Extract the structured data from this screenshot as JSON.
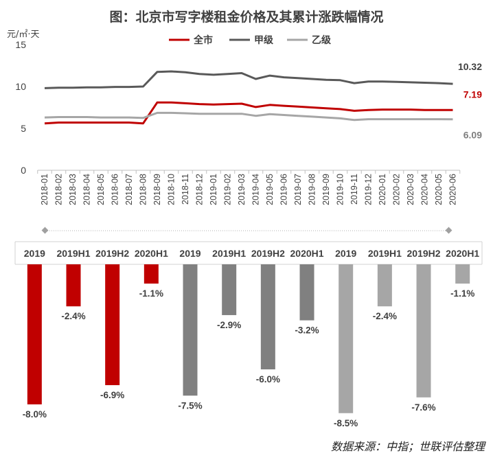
{
  "title": "图：北京市写字楼租金价格及其累计涨跌幅情况",
  "source": "数据来源：中指；世联评估整理",
  "chart_data": [
    {
      "type": "line",
      "ylabel": "元/㎡·天",
      "ylim": [
        0,
        15
      ],
      "yticks": [
        "0",
        "5",
        "10",
        "15"
      ],
      "legend_position": "top-center",
      "x": [
        "2018-01",
        "2018-02",
        "2018-03",
        "2018-04",
        "2018-05",
        "2018-06",
        "2018-07",
        "2018-08",
        "2018-09",
        "2018-10",
        "2018-11",
        "2018-12",
        "2019-01",
        "2019-02",
        "2019-03",
        "2019-04",
        "2019-05",
        "2019-06",
        "2019-07",
        "2019-08",
        "2019-09",
        "2019-10",
        "2019-11",
        "2019-12",
        "2020-01",
        "2020-02",
        "2020-03",
        "2020-04",
        "2020-05",
        "2020-06"
      ],
      "series": [
        {
          "name": "全市",
          "color": "#c00000",
          "end_label": "7.19",
          "values": [
            5.6,
            5.7,
            5.7,
            5.7,
            5.7,
            5.7,
            5.7,
            5.6,
            8.1,
            8.1,
            8.0,
            7.9,
            7.85,
            7.9,
            7.95,
            7.55,
            7.8,
            7.7,
            7.6,
            7.5,
            7.4,
            7.3,
            7.1,
            7.2,
            7.25,
            7.25,
            7.25,
            7.2,
            7.2,
            7.19
          ]
        },
        {
          "name": "甲级",
          "color": "#595959",
          "end_label": "10.32",
          "values": [
            9.8,
            9.85,
            9.85,
            9.9,
            9.9,
            9.95,
            9.95,
            10.0,
            11.75,
            11.8,
            11.7,
            11.5,
            11.4,
            11.5,
            11.6,
            10.9,
            11.3,
            11.1,
            11.0,
            10.9,
            10.8,
            10.75,
            10.4,
            10.6,
            10.6,
            10.55,
            10.5,
            10.45,
            10.4,
            10.32
          ]
        },
        {
          "name": "乙级",
          "color": "#a6a6a6",
          "end_label": "6.09",
          "values": [
            6.3,
            6.35,
            6.35,
            6.35,
            6.3,
            6.3,
            6.3,
            6.25,
            6.85,
            6.85,
            6.8,
            6.75,
            6.75,
            6.75,
            6.75,
            6.5,
            6.7,
            6.6,
            6.5,
            6.4,
            6.3,
            6.2,
            6.0,
            6.1,
            6.1,
            6.1,
            6.1,
            6.1,
            6.1,
            6.09
          ]
        }
      ]
    },
    {
      "type": "bar",
      "categories": [
        "2019",
        "2019H1",
        "2019H2",
        "2020H1",
        "2019",
        "2019H1",
        "2019H2",
        "2020H1",
        "2019",
        "2019H1",
        "2019H2",
        "2020H1"
      ],
      "values": [
        -8.0,
        -2.4,
        -6.9,
        -1.1,
        -7.5,
        -2.9,
        -6.0,
        -3.2,
        -8.5,
        -2.4,
        -7.6,
        -1.1
      ],
      "labels": [
        "-8.0%",
        "-2.4%",
        "-6.9%",
        "-1.1%",
        "-7.5%",
        "-2.9%",
        "-6.0%",
        "-3.2%",
        "-8.5%",
        "-2.4%",
        "-7.6%",
        "-1.1%"
      ],
      "colors": [
        "#c00000",
        "#c00000",
        "#c00000",
        "#c00000",
        "#808080",
        "#808080",
        "#808080",
        "#808080",
        "#a6a6a6",
        "#a6a6a6",
        "#a6a6a6",
        "#a6a6a6"
      ],
      "ylim": [
        -9,
        0
      ]
    }
  ]
}
